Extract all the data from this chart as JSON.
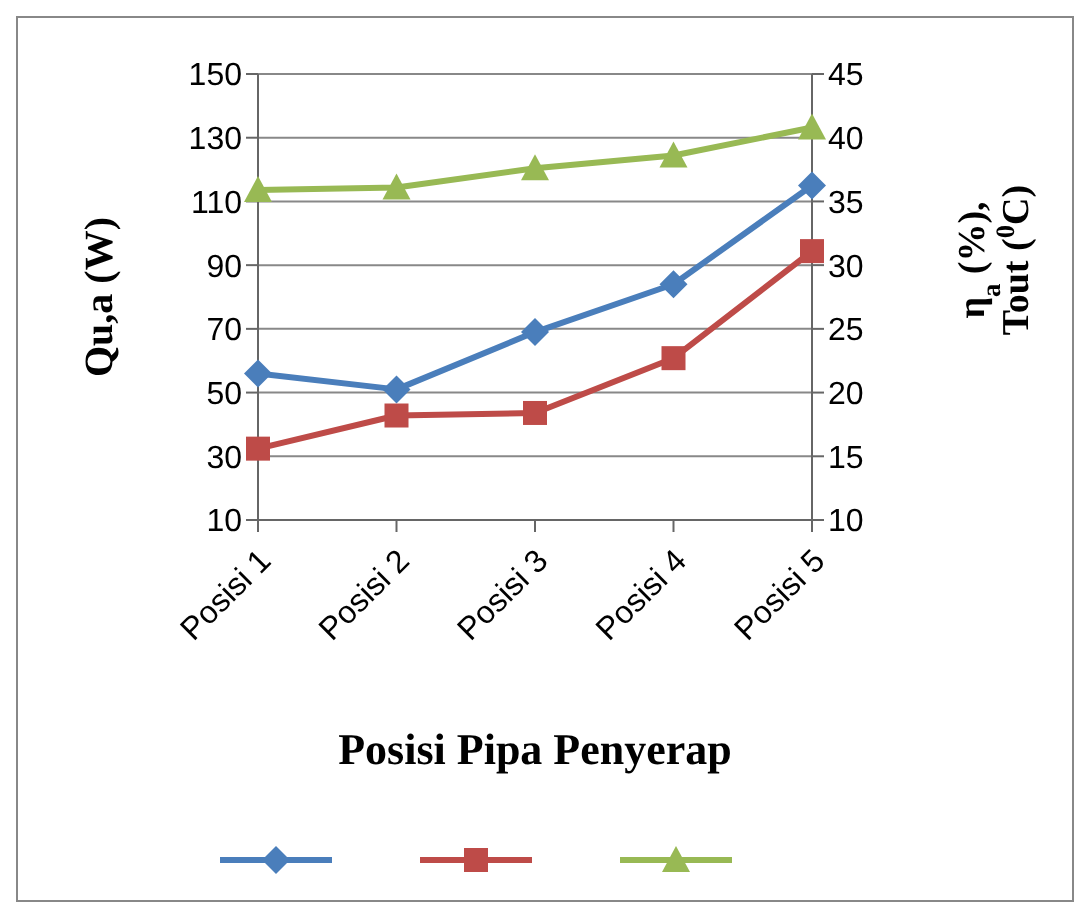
{
  "chart_data": {
    "type": "line",
    "xlabel": "Posisi Pipa Penyerap",
    "ylabel": "Qu,a (W)",
    "y2label": "η$_{a}$ (%), Tout ($^{0}$C)",
    "categories": [
      "Posisi 1",
      "Posisi 2",
      "Posisi 3",
      "Posisi 4",
      "Posisi 5"
    ],
    "series": [
      {
        "color": "#4a7ebb",
        "marker": "diamond",
        "values": [
          56,
          51,
          69,
          84,
          115
        ]
      },
      {
        "color": "#be4b48",
        "marker": "square",
        "axis": "y2",
        "values": [
          15.6,
          18.2,
          18.4,
          22.7,
          31.1
        ]
      },
      {
        "color": "#98b954",
        "marker": "triangle",
        "axis": "y2",
        "values": [
          35.9,
          36.1,
          37.6,
          38.6,
          40.8
        ]
      }
    ],
    "ylim": [
      10,
      150
    ],
    "yticks": [
      10,
      30,
      50,
      70,
      90,
      110,
      130,
      150
    ],
    "y2lim": [
      10,
      45
    ],
    "y2ticks": [
      10,
      15,
      20,
      25,
      30,
      35,
      40,
      45
    ],
    "grid": "y"
  }
}
